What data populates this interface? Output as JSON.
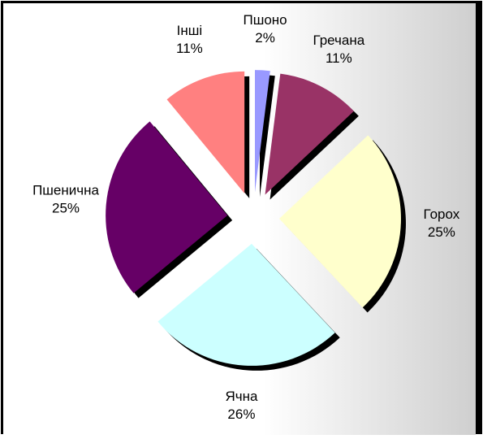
{
  "chart_data": {
    "type": "pie",
    "categories": [
      "Пшоно",
      "Гречана",
      "Горох",
      "Ячна",
      "Пшенична",
      "Інші"
    ],
    "values": [
      2,
      11,
      25,
      26,
      25,
      11
    ],
    "value_labels": [
      "2%",
      "11%",
      "25%",
      "26%",
      "25%",
      "11%"
    ],
    "colors": [
      "#9999ff",
      "#993366",
      "#ffffcc",
      "#ccffff",
      "#660066",
      "#ff8080"
    ]
  }
}
